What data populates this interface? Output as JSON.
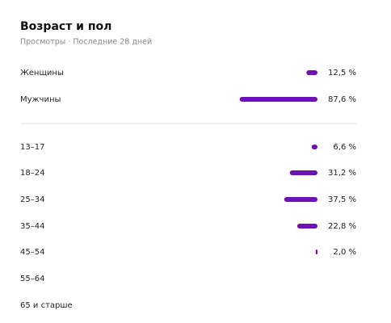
{
  "title": "Возраст и пол",
  "subtitle": "Просмотры · Последние 28 дней",
  "color": "#6c12b5",
  "gender": {
    "rows": [
      {
        "label": "Женщины",
        "value": 12.5,
        "value_label": "12,5 %"
      },
      {
        "label": "Мужчины",
        "value": 87.6,
        "value_label": "87,6 %"
      }
    ]
  },
  "age": {
    "rows": [
      {
        "label": "13–17",
        "value": 6.6,
        "value_label": "6,6 %"
      },
      {
        "label": "18–24",
        "value": 31.2,
        "value_label": "31,2 %"
      },
      {
        "label": "25–34",
        "value": 37.5,
        "value_label": "37,5 %"
      },
      {
        "label": "35–44",
        "value": 22.8,
        "value_label": "22,8 %"
      },
      {
        "label": "45–54",
        "value": 2.0,
        "value_label": "2,0 %"
      },
      {
        "label": "55–64",
        "value": null
      },
      {
        "label": "65 и старше",
        "value": null
      }
    ]
  }
}
